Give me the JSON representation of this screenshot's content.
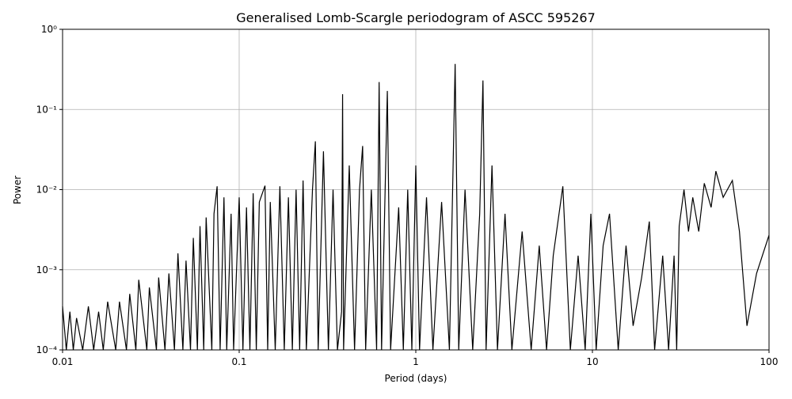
{
  "chart_data": {
    "type": "line",
    "title": "Generalised Lomb-Scargle periodogram of ASCC 595267",
    "x_label": "Period (days)",
    "y_label": "Power",
    "x_log": true,
    "y_log": true,
    "grid": true,
    "xlim": [
      0.01,
      100
    ],
    "ylim": [
      0.0001,
      1
    ],
    "xticks": [
      0.01,
      0.1,
      1,
      10,
      100
    ],
    "yticks": [
      {
        "value": 0.0001,
        "label": "10⁻⁴"
      },
      {
        "value": 0.001,
        "label": "10⁻³"
      },
      {
        "value": 0.01,
        "label": "10⁻²"
      },
      {
        "value": 0.1,
        "label": "10⁻¹"
      },
      {
        "value": 1,
        "label": "10⁰"
      }
    ],
    "x": [
      0.01,
      0.0105,
      0.011,
      0.0115,
      0.012,
      0.013,
      0.014,
      0.015,
      0.016,
      0.017,
      0.018,
      0.02,
      0.021,
      0.023,
      0.024,
      0.026,
      0.027,
      0.03,
      0.031,
      0.034,
      0.035,
      0.038,
      0.04,
      0.043,
      0.045,
      0.048,
      0.05,
      0.053,
      0.055,
      0.058,
      0.06,
      0.063,
      0.065,
      0.07,
      0.072,
      0.075,
      0.078,
      0.082,
      0.085,
      0.09,
      0.093,
      0.1,
      0.105,
      0.11,
      0.115,
      0.12,
      0.125,
      0.13,
      0.14,
      0.145,
      0.15,
      0.16,
      0.17,
      0.18,
      0.19,
      0.2,
      0.21,
      0.22,
      0.23,
      0.24,
      0.26,
      0.27,
      0.28,
      0.3,
      0.32,
      0.34,
      0.36,
      0.38,
      0.385,
      0.39,
      0.42,
      0.45,
      0.48,
      0.5,
      0.52,
      0.56,
      0.6,
      0.62,
      0.64,
      0.69,
      0.72,
      0.8,
      0.85,
      0.9,
      0.95,
      1.0,
      1.05,
      1.15,
      1.25,
      1.4,
      1.55,
      1.67,
      1.75,
      1.9,
      2.1,
      2.3,
      2.4,
      2.5,
      2.7,
      2.9,
      3.2,
      3.5,
      4,
      4.5,
      5,
      5.5,
      6,
      6.8,
      7.5,
      8.3,
      9.1,
      9.8,
      10.5,
      11.5,
      12.5,
      14,
      15.5,
      17,
      19,
      21,
      22.5,
      25,
      27,
      29,
      30,
      31,
      33,
      35,
      37,
      40,
      43,
      47,
      50,
      55,
      62,
      68,
      75,
      85,
      100
    ],
    "series": [
      {
        "color": "#000000",
        "values": [
          0.00035,
          0.0001,
          0.0003,
          0.0001,
          0.00025,
          0.0001,
          0.00035,
          0.0001,
          0.0003,
          0.0001,
          0.0004,
          0.0001,
          0.0004,
          0.0001,
          0.0005,
          0.0001,
          0.00075,
          0.0001,
          0.0006,
          0.0001,
          0.0008,
          0.0001,
          0.0009,
          0.0001,
          0.0016,
          0.0001,
          0.0013,
          0.0001,
          0.0025,
          0.0001,
          0.0035,
          0.0001,
          0.0045,
          0.0001,
          0.005,
          0.011,
          0.0001,
          0.008,
          0.0001,
          0.005,
          0.0001,
          0.008,
          0.0001,
          0.006,
          0.0001,
          0.009,
          0.0001,
          0.007,
          0.0112,
          0.0001,
          0.007,
          0.0001,
          0.011,
          0.0001,
          0.008,
          0.0001,
          0.01,
          0.0001,
          0.013,
          0.0001,
          0.01,
          0.04,
          0.0001,
          0.03,
          0.0001,
          0.01,
          0.0001,
          0.0003,
          0.155,
          0.0001,
          0.02,
          0.0001,
          0.01,
          0.035,
          0.0001,
          0.01,
          0.0001,
          0.22,
          0.0001,
          0.17,
          0.0001,
          0.006,
          0.0001,
          0.01,
          0.0001,
          0.02,
          0.0001,
          0.008,
          0.0001,
          0.007,
          0.0001,
          0.37,
          0.0001,
          0.01,
          0.0001,
          0.005,
          0.23,
          0.0001,
          0.02,
          0.0001,
          0.005,
          0.0001,
          0.003,
          0.0001,
          0.002,
          0.0001,
          0.0015,
          0.011,
          0.0001,
          0.0015,
          0.0001,
          0.005,
          0.0001,
          0.002,
          0.005,
          0.0001,
          0.002,
          0.0002,
          0.0008,
          0.004,
          0.0001,
          0.0015,
          0.0001,
          0.0015,
          0.0001,
          0.0035,
          0.01,
          0.003,
          0.008,
          0.003,
          0.012,
          0.006,
          0.017,
          0.008,
          0.013,
          0.003,
          0.0002,
          0.0009,
          0.0027
        ]
      }
    ]
  }
}
